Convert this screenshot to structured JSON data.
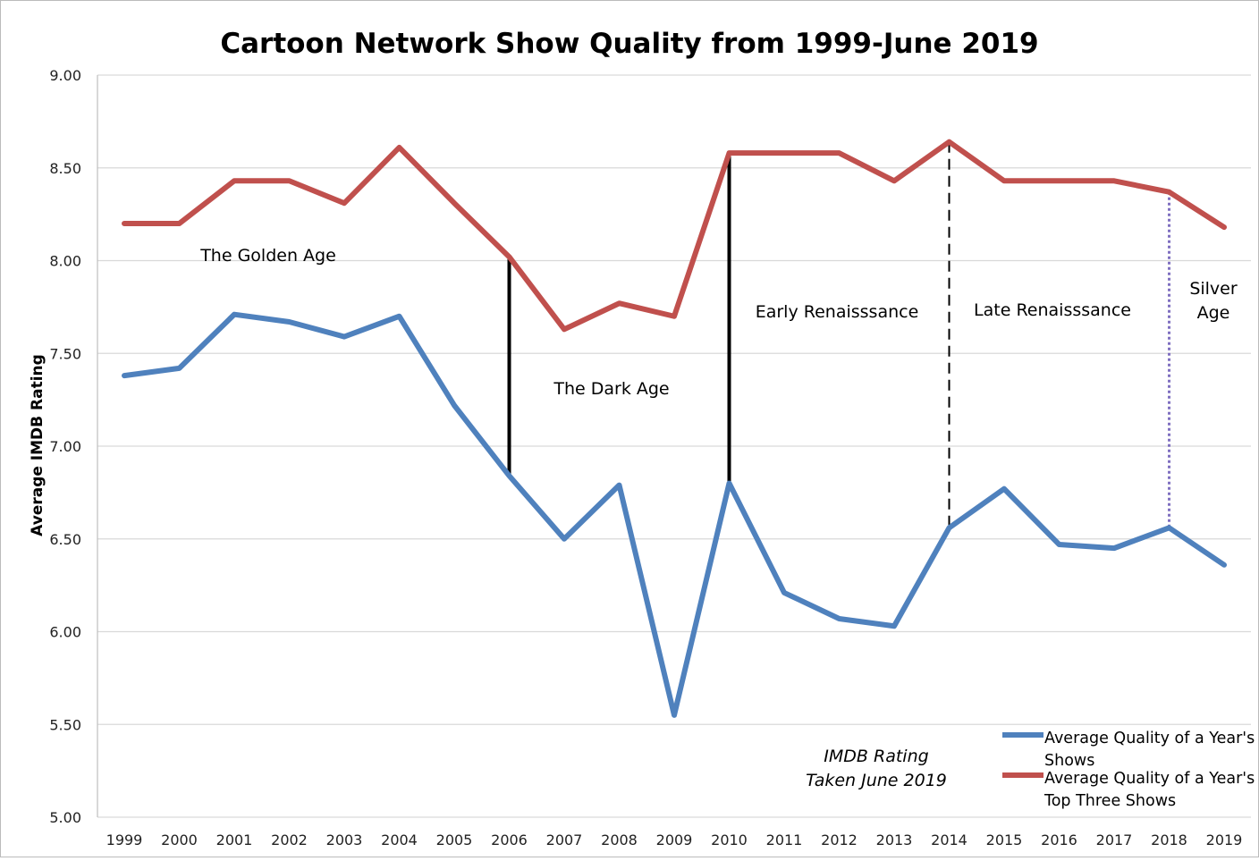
{
  "chart_data": {
    "type": "line",
    "title": "Cartoon Network Show Quality from 1999-June 2019",
    "xlabel": "",
    "ylabel": "Average IMDB Rating",
    "ylim": [
      5.0,
      9.0
    ],
    "yticks": [
      "5.00",
      "5.50",
      "6.00",
      "6.50",
      "7.00",
      "7.50",
      "8.00",
      "8.50",
      "9.00"
    ],
    "grid": true,
    "legend_position": "bottom-right",
    "categories": [
      "1999",
      "2000",
      "2001",
      "2002",
      "2003",
      "2004",
      "2005",
      "2006",
      "2007",
      "2008",
      "2009",
      "2010",
      "2011",
      "2012",
      "2013",
      "2014",
      "2015",
      "2016",
      "2017",
      "2018",
      "2019"
    ],
    "series": [
      {
        "name": "Average Quality of a Year's Shows",
        "color": "#4f81bd",
        "values": [
          7.38,
          7.42,
          7.71,
          7.67,
          7.59,
          7.7,
          7.22,
          6.84,
          6.5,
          6.79,
          5.55,
          6.8,
          6.21,
          6.07,
          6.03,
          6.56,
          6.77,
          6.47,
          6.45,
          6.56,
          6.36
        ]
      },
      {
        "name": "Average Quality of a Year's Top Three Shows",
        "color": "#c0504d",
        "values": [
          8.2,
          8.2,
          8.43,
          8.43,
          8.31,
          8.61,
          8.31,
          8.02,
          7.63,
          7.77,
          7.7,
          8.58,
          8.58,
          8.58,
          8.43,
          8.64,
          8.43,
          8.43,
          8.43,
          8.37,
          8.18
        ]
      }
    ],
    "era_dividers": [
      {
        "year": "2006",
        "style": "solid",
        "color": "#000000"
      },
      {
        "year": "2010",
        "style": "solid",
        "color": "#000000"
      },
      {
        "year": "2014",
        "style": "dashed",
        "color": "#000000"
      },
      {
        "year": "2018",
        "style": "dotted",
        "color": "#7f6fc0"
      }
    ],
    "annotations": {
      "golden": "The Golden Age",
      "dark": "The Dark Age",
      "early": "Early Renaisssance",
      "late": "Late Renaisssance",
      "silver1": "Silver",
      "silver2": "Age",
      "note1": "IMDB Rating",
      "note2": "Taken June 2019"
    },
    "legend_lines": [
      [
        "Average Quality of a Year's",
        "Shows"
      ],
      [
        "Average Quality of a Year's",
        "Top Three Shows"
      ]
    ]
  }
}
